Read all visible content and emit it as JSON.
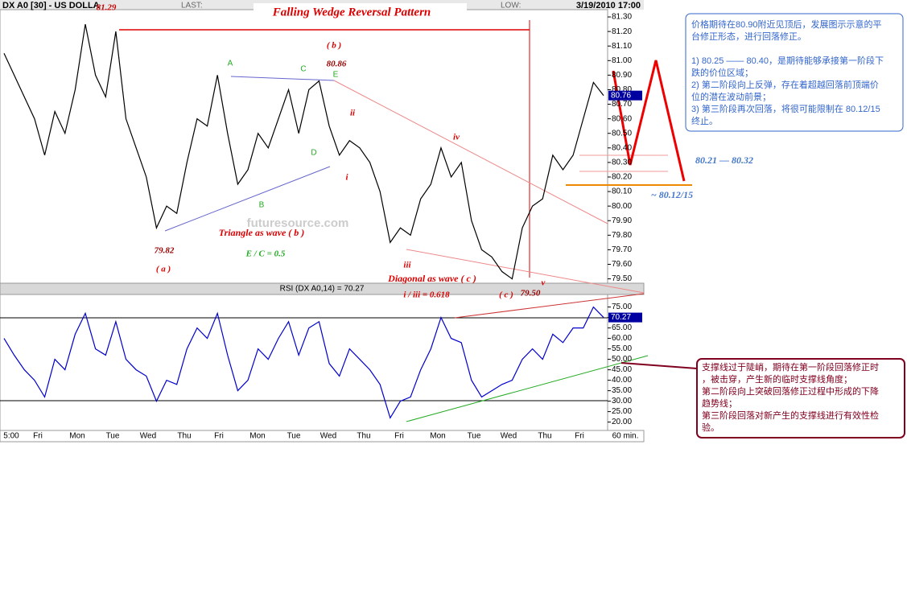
{
  "chart_data": [
    {
      "type": "line",
      "header": {
        "symbol": "DX A0 [30] - US DOLLA",
        "last": "LAST:",
        "low": "LOW:",
        "datetime": "3/19/2010 17:00"
      },
      "title": "Falling Wedge Reversal Pattern",
      "last_label": "80.76",
      "color": "#000000",
      "values": [
        81.05,
        80.9,
        80.75,
        80.6,
        80.35,
        80.65,
        80.5,
        80.8,
        81.25,
        80.9,
        80.75,
        81.2,
        80.6,
        80.4,
        80.2,
        79.85,
        80.0,
        79.95,
        80.3,
        80.6,
        80.55,
        80.9,
        80.5,
        80.15,
        80.25,
        80.5,
        80.4,
        80.6,
        80.8,
        80.5,
        80.8,
        80.86,
        80.55,
        80.35,
        80.45,
        80.4,
        80.3,
        80.1,
        79.75,
        79.85,
        79.8,
        80.05,
        80.15,
        80.4,
        80.2,
        80.3,
        79.9,
        79.7,
        79.65,
        79.55,
        79.5,
        79.85,
        80.0,
        80.05,
        80.35,
        80.25,
        80.35,
        80.6,
        80.85,
        80.76
      ],
      "ylim": [
        79.47,
        81.35
      ],
      "yticks": [
        {
          "value": 79.5,
          "label": "79.50"
        },
        {
          "value": 79.6,
          "label": "79.60"
        },
        {
          "value": 79.7,
          "label": "79.70"
        },
        {
          "value": 79.8,
          "label": "79.80"
        },
        {
          "value": 79.9,
          "label": "79.90"
        },
        {
          "value": 80.0,
          "label": "80.00"
        },
        {
          "value": 80.1,
          "label": "80.10"
        },
        {
          "value": 80.2,
          "label": "80.20"
        },
        {
          "value": 80.3,
          "label": "80.30"
        },
        {
          "value": 80.4,
          "label": "80.40"
        },
        {
          "value": 80.5,
          "label": "80.50"
        },
        {
          "value": 80.6,
          "label": "80.60"
        },
        {
          "value": 80.7,
          "label": "80.70"
        },
        {
          "value": 80.8,
          "label": "80.80"
        },
        {
          "value": 80.9,
          "label": "80.90"
        },
        {
          "value": 81.0,
          "label": "81.00"
        },
        {
          "value": 81.1,
          "label": "81.10"
        },
        {
          "value": 81.2,
          "label": "81.20"
        },
        {
          "value": 81.3,
          "label": "81.30"
        }
      ],
      "annotations": [
        "81.29",
        "( b )",
        "80.86",
        "A",
        "C",
        "E",
        "D",
        "B",
        "ii",
        "i",
        "iv",
        "iii",
        "v",
        "Triangle as wave ( b )",
        "79.82",
        "( a )",
        "E / C = 0.5",
        "Diagonal as wave ( c )",
        "i / iii = 0.618",
        "( c )",
        "79.50",
        "80.21 — 80.32",
        "~ 80.12/15",
        "futuresource.com"
      ],
      "note_top": [
        "价格期待在80.90附近见顶后，发展图示示意的平",
        "台修正形态，进行回落修正。",
        "",
        "1) 80.25 —— 80.40，是期待能够承接第一阶段下",
        "跌的价位区域；",
        "2) 第二阶段向上反弹，存在着超越回落前顶端价",
        "位的潜在波动前景；",
        "3) 第三阶段再次回落，将很可能限制在 80.12/15",
        "终止。"
      ],
      "note_bottom": [
        "支撑线过于陡峭，期待在第一阶段回落修正时",
        "，被击穿，产生新的临时支撑线角度；",
        "第二阶段向上突破回落修正过程中形成的下降",
        "趋势线；",
        "第三阶段回落对新产生的支撑线进行有效性检",
        "验。"
      ]
    },
    {
      "type": "line",
      "label": "RSI (DX A0,14) = 70.27",
      "last_label": "70.27",
      "color": "#0000cc",
      "values": [
        60,
        52,
        45,
        40,
        32,
        50,
        45,
        62,
        72,
        55,
        52,
        68,
        50,
        45,
        42,
        30,
        40,
        38,
        55,
        65,
        60,
        72,
        52,
        35,
        40,
        55,
        50,
        60,
        68,
        52,
        65,
        68,
        48,
        42,
        55,
        50,
        45,
        38,
        22,
        30,
        32,
        45,
        55,
        70,
        60,
        58,
        40,
        32,
        35,
        38,
        40,
        50,
        55,
        50,
        62,
        58,
        65,
        65,
        75,
        70
      ],
      "ylim": [
        16,
        81
      ],
      "yticks": [
        {
          "value": 20,
          "label": "20.00"
        },
        {
          "value": 25,
          "label": "25.00"
        },
        {
          "value": 30,
          "label": "30.00"
        },
        {
          "value": 35,
          "label": "35.00"
        },
        {
          "value": 40,
          "label": "40.00"
        },
        {
          "value": 45,
          "label": "45.00"
        },
        {
          "value": 50,
          "label": "50.00"
        },
        {
          "value": 55,
          "label": "55.00"
        },
        {
          "value": 60,
          "label": "60.00"
        },
        {
          "value": 65,
          "label": "65.00"
        },
        {
          "value": 70,
          "label": "70.00"
        },
        {
          "value": 75,
          "label": "75.00"
        }
      ],
      "x_labels": [
        "5:00",
        "Fri",
        "Mon",
        "Tue",
        "Wed",
        "Thu",
        "Fri",
        "Mon",
        "Tue",
        "Wed",
        "Thu",
        "Fri",
        "Mon",
        "Tue",
        "Wed",
        "Thu",
        "Fri",
        "60 min."
      ]
    }
  ]
}
